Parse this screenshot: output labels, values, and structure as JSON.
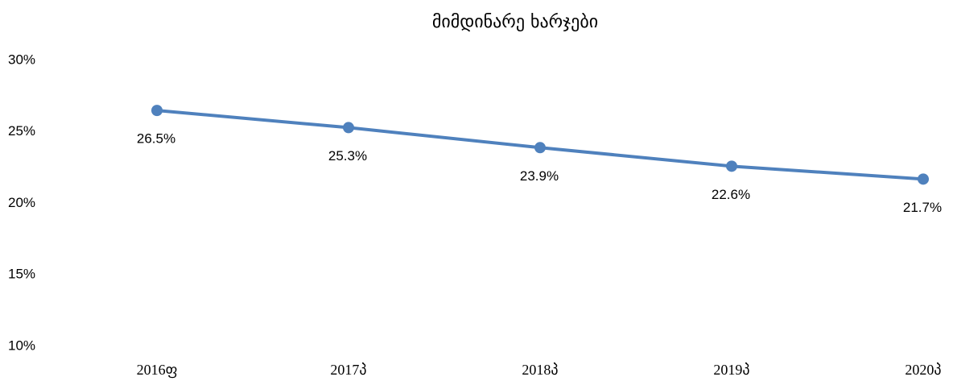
{
  "chart_data": {
    "type": "line",
    "title": "მიმდინარე ხარჯები",
    "categories": [
      "2016ფ",
      "2017პ",
      "2018პ",
      "2019პ",
      "2020პ"
    ],
    "values": [
      26.5,
      25.3,
      23.9,
      22.6,
      21.7
    ],
    "value_labels": [
      "26.5%",
      "25.3%",
      "23.9%",
      "22.6%",
      "21.7%"
    ],
    "color": "#4f81bd",
    "ylim": [
      10,
      30
    ],
    "yticks": [
      {
        "value": 10,
        "label": "10%"
      },
      {
        "value": 15,
        "label": "15%"
      },
      {
        "value": 20,
        "label": "20%"
      },
      {
        "value": 25,
        "label": "25%"
      },
      {
        "value": 30,
        "label": "30%"
      }
    ],
    "grid": false
  }
}
